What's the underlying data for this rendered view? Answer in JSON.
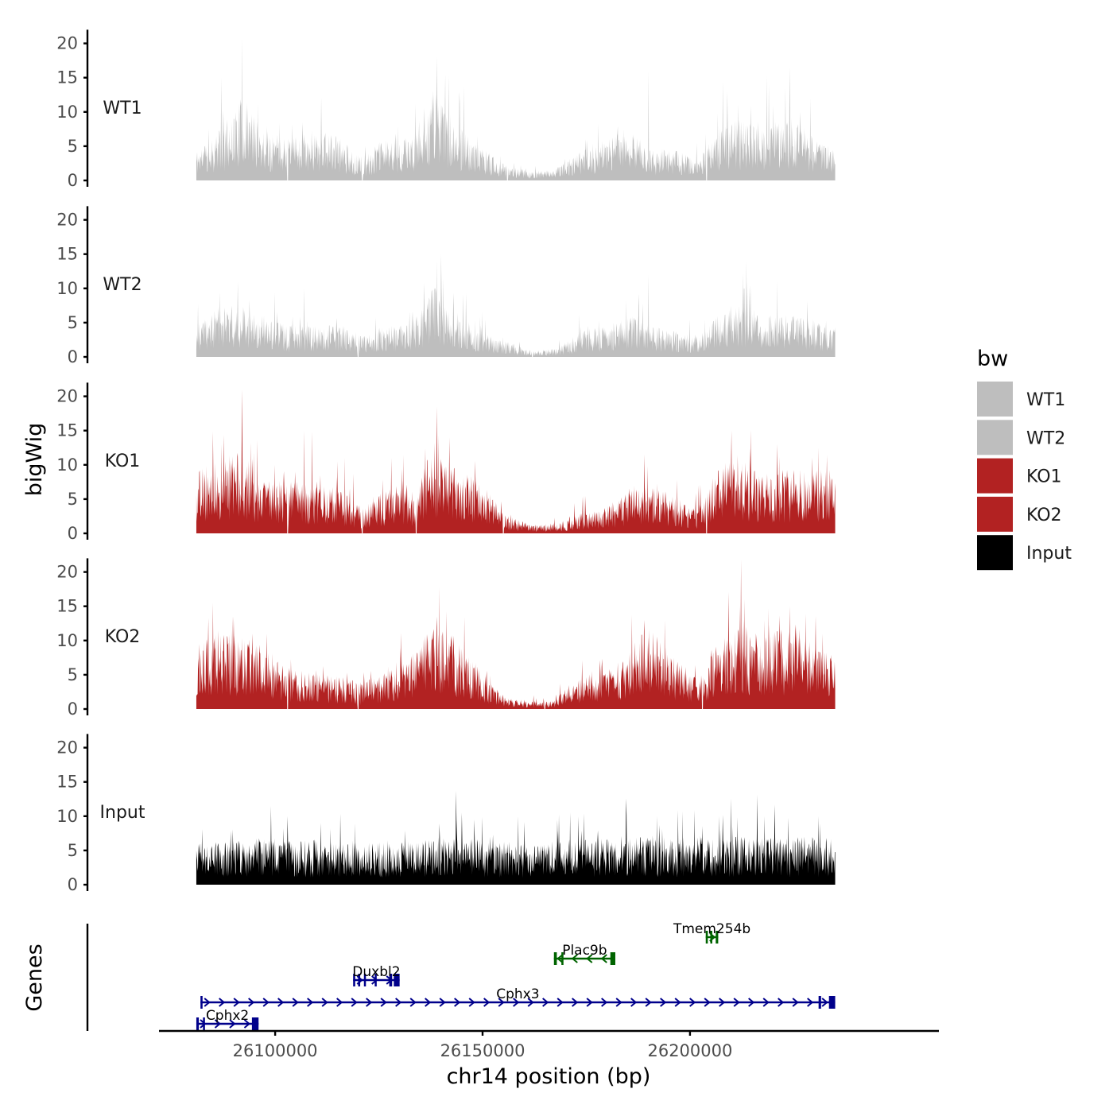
{
  "chart_data": {
    "type": "area",
    "title": "",
    "xlabel": "chr14 position (bp)",
    "ylabel": "bigWig",
    "gene_panel_label": "Genes",
    "xlim": [
      26072000,
      26260000
    ],
    "x_data_range": [
      26081000,
      26235000
    ],
    "x_ticks": [
      {
        "value": 26100000,
        "label": "26100000"
      },
      {
        "value": 26150000,
        "label": "26150000"
      },
      {
        "value": 26200000,
        "label": "26200000"
      }
    ],
    "ylim": [
      0,
      22
    ],
    "y_ticks": [
      {
        "value": 0,
        "label": "0"
      },
      {
        "value": 5,
        "label": "5"
      },
      {
        "value": 10,
        "label": "10"
      },
      {
        "value": 15,
        "label": "15"
      },
      {
        "value": 20,
        "label": "20"
      }
    ],
    "legend": {
      "title": "bw",
      "position": "right",
      "entries": [
        {
          "label": "WT1",
          "color": "#bebebe"
        },
        {
          "label": "WT2",
          "color": "#bebebe"
        },
        {
          "label": "KO1",
          "color": "#b22222"
        },
        {
          "label": "KO2",
          "color": "#b22222"
        },
        {
          "label": "Input",
          "color": "#000000"
        }
      ]
    },
    "series": [
      {
        "name": "WT1",
        "color": "#bebebe",
        "seed": 11,
        "noise": 1.0,
        "profile": [
          [
            26081000,
            3
          ],
          [
            26087000,
            5
          ],
          [
            26092000,
            8
          ],
          [
            26097000,
            5
          ],
          [
            26103000,
            4
          ],
          [
            26110000,
            5
          ],
          [
            26116000,
            4
          ],
          [
            26121000,
            2
          ],
          [
            26126000,
            4
          ],
          [
            26133000,
            4
          ],
          [
            26138000,
            9
          ],
          [
            26142000,
            6
          ],
          [
            26147000,
            4
          ],
          [
            26152000,
            2.5
          ],
          [
            26156000,
            1.5
          ],
          [
            26162000,
            0.8
          ],
          [
            26168000,
            1.2
          ],
          [
            26174000,
            3
          ],
          [
            26180000,
            4
          ],
          [
            26186000,
            5
          ],
          [
            26190000,
            3
          ],
          [
            26196000,
            3
          ],
          [
            26202000,
            2
          ],
          [
            26207000,
            5
          ],
          [
            26213000,
            6
          ],
          [
            26219000,
            5
          ],
          [
            26225000,
            6
          ],
          [
            26230000,
            4
          ],
          [
            26235000,
            3
          ]
        ],
        "peaks": [
          [
            26092000,
            21
          ],
          [
            26139000,
            18
          ],
          [
            26190000,
            16
          ],
          [
            26224000,
            16.5
          ],
          [
            26087000,
            15
          ],
          [
            26141000,
            15.5
          ],
          [
            26219000,
            14
          ],
          [
            26209000,
            13
          ],
          [
            26229000,
            12
          ]
        ],
        "dips": [
          26103000,
          26121000,
          26156000,
          26204000
        ]
      },
      {
        "name": "WT2",
        "color": "#bebebe",
        "seed": 23,
        "noise": 1.0,
        "profile": [
          [
            26081000,
            3
          ],
          [
            26087000,
            5
          ],
          [
            26092000,
            5
          ],
          [
            26097000,
            4
          ],
          [
            26103000,
            3
          ],
          [
            26110000,
            3
          ],
          [
            26116000,
            3
          ],
          [
            26121000,
            2
          ],
          [
            26126000,
            3
          ],
          [
            26133000,
            3
          ],
          [
            26138000,
            7
          ],
          [
            26142000,
            5
          ],
          [
            26147000,
            3
          ],
          [
            26152000,
            2
          ],
          [
            26156000,
            1.5
          ],
          [
            26162000,
            0.6
          ],
          [
            26168000,
            0.8
          ],
          [
            26174000,
            2.5
          ],
          [
            26180000,
            3
          ],
          [
            26186000,
            4
          ],
          [
            26190000,
            3
          ],
          [
            26196000,
            2.5
          ],
          [
            26202000,
            2
          ],
          [
            26207000,
            4
          ],
          [
            26213000,
            5
          ],
          [
            26219000,
            4
          ],
          [
            26225000,
            4
          ],
          [
            26230000,
            3.5
          ],
          [
            26235000,
            3
          ]
        ],
        "peaks": [
          [
            26140000,
            15
          ],
          [
            26091000,
            11
          ],
          [
            26190000,
            12
          ],
          [
            26107000,
            10
          ],
          [
            26221000,
            11
          ],
          [
            26213000,
            10
          ],
          [
            26139000,
            14
          ]
        ],
        "dips": [
          26120000,
          26162000
        ]
      },
      {
        "name": "KO1",
        "color": "#b22222",
        "seed": 37,
        "noise": 1.0,
        "profile": [
          [
            26081000,
            6
          ],
          [
            26087000,
            7
          ],
          [
            26092000,
            8
          ],
          [
            26097000,
            5
          ],
          [
            26103000,
            5
          ],
          [
            26110000,
            5
          ],
          [
            26116000,
            4
          ],
          [
            26121000,
            2.5
          ],
          [
            26126000,
            4
          ],
          [
            26131000,
            5
          ],
          [
            26134000,
            3.5
          ],
          [
            26138000,
            9
          ],
          [
            26142000,
            7
          ],
          [
            26146000,
            6
          ],
          [
            26150000,
            5
          ],
          [
            26155000,
            1.8
          ],
          [
            26162000,
            0.8
          ],
          [
            26168000,
            1
          ],
          [
            26174000,
            2
          ],
          [
            26180000,
            2.5
          ],
          [
            26186000,
            4.5
          ],
          [
            26190000,
            5
          ],
          [
            26196000,
            3.5
          ],
          [
            26202000,
            2.5
          ],
          [
            26205000,
            5
          ],
          [
            26210000,
            8
          ],
          [
            26216000,
            6
          ],
          [
            26222000,
            6
          ],
          [
            26228000,
            6
          ],
          [
            26235000,
            6
          ]
        ],
        "peaks": [
          [
            26092000,
            21
          ],
          [
            26139000,
            18.5
          ],
          [
            26107000,
            15
          ],
          [
            26210000,
            15
          ],
          [
            26087000,
            13
          ],
          [
            26142000,
            14
          ],
          [
            26189000,
            11.5
          ],
          [
            26221000,
            13
          ],
          [
            26231000,
            12.5
          ],
          [
            26128000,
            11
          ]
        ],
        "dips": [
          26103000,
          26121000,
          26134000,
          26155000,
          26204000
        ]
      },
      {
        "name": "KO2",
        "color": "#b22222",
        "seed": 53,
        "noise": 1.0,
        "profile": [
          [
            26081000,
            6
          ],
          [
            26087000,
            8
          ],
          [
            26092000,
            7
          ],
          [
            26097000,
            6
          ],
          [
            26103000,
            4
          ],
          [
            26110000,
            3.5
          ],
          [
            26116000,
            3
          ],
          [
            26121000,
            2.5
          ],
          [
            26126000,
            3.5
          ],
          [
            26132000,
            4.5
          ],
          [
            26138000,
            8
          ],
          [
            26143000,
            7
          ],
          [
            26147000,
            5
          ],
          [
            26152000,
            2.5
          ],
          [
            26156000,
            1
          ],
          [
            26162000,
            0.8
          ],
          [
            26167000,
            0.8
          ],
          [
            26172000,
            3
          ],
          [
            26178000,
            4
          ],
          [
            26184000,
            4.5
          ],
          [
            26190000,
            8
          ],
          [
            26196000,
            5
          ],
          [
            26202000,
            3
          ],
          [
            26206000,
            6
          ],
          [
            26212000,
            8
          ],
          [
            26218000,
            7
          ],
          [
            26224000,
            8
          ],
          [
            26230000,
            6
          ],
          [
            26235000,
            5
          ]
        ],
        "peaks": [
          [
            26085000,
            15.5
          ],
          [
            26090000,
            13.5
          ],
          [
            26139000,
            13.5
          ],
          [
            26212000,
            15
          ],
          [
            26224000,
            15
          ],
          [
            26189000,
            13
          ],
          [
            26098000,
            11
          ],
          [
            26232000,
            11
          ],
          [
            26218000,
            13
          ]
        ],
        "dips": [
          26103000,
          26120000,
          26165000,
          26203000
        ]
      },
      {
        "name": "Input",
        "color": "#000000",
        "seed": 71,
        "noise": 1.0,
        "profile": [
          [
            26081000,
            4
          ],
          [
            26100000,
            4.5
          ],
          [
            26120000,
            4
          ],
          [
            26140000,
            4.5
          ],
          [
            26160000,
            4
          ],
          [
            26180000,
            4.5
          ],
          [
            26200000,
            4.5
          ],
          [
            26220000,
            4.5
          ],
          [
            26235000,
            4.5
          ]
        ],
        "peaks": [
          [
            26099000,
            11.5
          ],
          [
            26103000,
            10
          ],
          [
            26145000,
            10.5
          ],
          [
            26192000,
            10
          ],
          [
            26207000,
            10
          ],
          [
            26218000,
            10
          ],
          [
            26231000,
            10
          ],
          [
            26111000,
            9
          ],
          [
            26168000,
            9.5
          ]
        ],
        "dips": []
      }
    ],
    "genes": [
      {
        "name": "Tmem254b",
        "strand": "+",
        "start": 26203800,
        "end": 26206800,
        "color": "#006400",
        "row": 4,
        "exons": [
          [
            26203800,
            26204300
          ],
          [
            26204900,
            26205300
          ],
          [
            26206200,
            26206800
          ]
        ]
      },
      {
        "name": "Plac9b",
        "strand": "-",
        "start": 26167200,
        "end": 26182000,
        "color": "#006400",
        "row": 3,
        "exons": [
          [
            26167200,
            26167900
          ],
          [
            26169000,
            26169500
          ],
          [
            26180800,
            26182000
          ]
        ]
      },
      {
        "name": "Duxbl2",
        "strand": "+",
        "start": 26118800,
        "end": 26130000,
        "color": "#00008b",
        "row": 2,
        "exons": [
          [
            26118800,
            26119300
          ],
          [
            26120000,
            26120500
          ],
          [
            26121400,
            26121800
          ],
          [
            26124000,
            26124400
          ],
          [
            26127500,
            26128200
          ],
          [
            26128600,
            26130000
          ]
        ]
      },
      {
        "name": "Cphx3",
        "strand": "+",
        "start": 26082000,
        "end": 26235000,
        "color": "#00008b",
        "row": 1,
        "exons": [
          [
            26082000,
            26082500
          ],
          [
            26231000,
            26231600
          ],
          [
            26233500,
            26235000
          ]
        ]
      },
      {
        "name": "Cphx2",
        "strand": "+",
        "start": 26081000,
        "end": 26096000,
        "color": "#00008b",
        "row": 0,
        "exons": [
          [
            26081000,
            26081600
          ],
          [
            26082600,
            26082900
          ],
          [
            26094400,
            26096000
          ]
        ]
      }
    ]
  }
}
